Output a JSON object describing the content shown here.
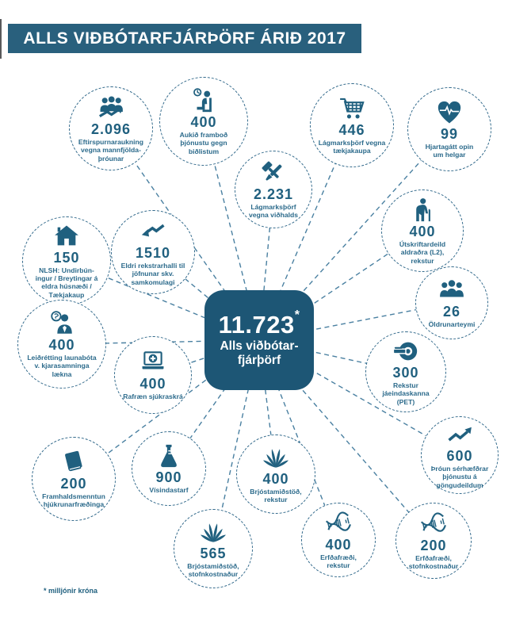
{
  "colors": {
    "title_bar_bg": "#29607D",
    "hub_bg": "#1D5675",
    "node_teal": "#20607F",
    "label_teal": "#2B6A8B",
    "dash_border": "#30688A",
    "connector": "#4A80A1",
    "page_bg": "#FFFFFF"
  },
  "title": "ALLS VIÐBÓTARFJÁRÞÖRF ÁRIÐ 2017",
  "hub": {
    "value": "11.723",
    "asterisk": "*",
    "label": "Alls viðbótar-\nfjárþörf"
  },
  "footnote": "* milljónir króna",
  "nodes": [
    {
      "id": "eftirspurn",
      "icon": "population-growth-icon",
      "value": "2.096",
      "label": "Eftirspurnaraukning\nvegna mannfjölda-\nþróunar"
    },
    {
      "id": "bidlistar",
      "icon": "waiting-patient-icon",
      "value": "400",
      "label": "Aukið framboð\nþjónustu gegn\nbiðlistum"
    },
    {
      "id": "taekjakaup",
      "icon": "shopping-cart-icon",
      "value": "446",
      "label": "Lágmarksþörf vegna\ntækjakaupa"
    },
    {
      "id": "hjartagatt",
      "icon": "heart-pulse-icon",
      "value": "99",
      "label": "Hjartagátt opin\num helgar"
    },
    {
      "id": "vidhald",
      "icon": "tools-icon",
      "value": "2.231",
      "label": "Lágmarksþörf\nvegna viðhalds"
    },
    {
      "id": "nlsh",
      "icon": "house-icon",
      "value": "150",
      "label": "NLSH: Undirbún-\ningur / Breytingar á\neldra húsnæði /\nTækjakaup"
    },
    {
      "id": "rekstrarhalli",
      "icon": "declining-arrow-icon",
      "value": "1510",
      "label": "Eldri rekstrarhalli til\njöfnunar skv.\nsamkomulagi"
    },
    {
      "id": "utskriftardeild",
      "icon": "elderly-person-icon",
      "value": "400",
      "label": "Útskriftardeild\naldraðra (L2),\nrekstur"
    },
    {
      "id": "oldrunarteymi",
      "icon": "people-group-icon",
      "value": "26",
      "label": "Öldrunarteymi"
    },
    {
      "id": "launabaetur",
      "icon": "doctor-coin-icon",
      "value": "400",
      "label": "Leiðrétting launabóta\nv. kjarasamninga\nlækna"
    },
    {
      "id": "sjukraskra",
      "icon": "laptop-medical-icon",
      "value": "400",
      "label": "Rafræn sjúkraskrá"
    },
    {
      "id": "pet",
      "icon": "pet-scanner-icon",
      "value": "300",
      "label": "Rekstur jáeindaskanna\n(PET)"
    },
    {
      "id": "gongudeildir",
      "icon": "rising-arrow-icon",
      "value": "600",
      "label": "Þróun sérhæfðrar\nþjónustu á\ngöngudeildum"
    },
    {
      "id": "framhaldsmenntun",
      "icon": "book-icon",
      "value": "200",
      "label": "Framhaldsmenntun\nhjúkrunarfræðinga"
    },
    {
      "id": "visindastarf",
      "icon": "flask-icon",
      "value": "900",
      "label": "Vísindastarf"
    },
    {
      "id": "brjostamidstod-rekstur",
      "icon": "flower-icon",
      "value": "400",
      "label": "Brjóstamiðstöð,\nrekstur"
    },
    {
      "id": "brjostamidstod-stofn",
      "icon": "flower-icon",
      "value": "565",
      "label": "Brjóstamiðstöð,\nstofnkostnaður"
    },
    {
      "id": "erfdafraedi-rekstur",
      "icon": "dna-icon",
      "value": "400",
      "label": "Erfðafræði,\nrekstur"
    },
    {
      "id": "erfdafraedi-stofn",
      "icon": "dna-icon",
      "value": "200",
      "label": "Erfðafræði,\nstofnkostnaður"
    }
  ]
}
